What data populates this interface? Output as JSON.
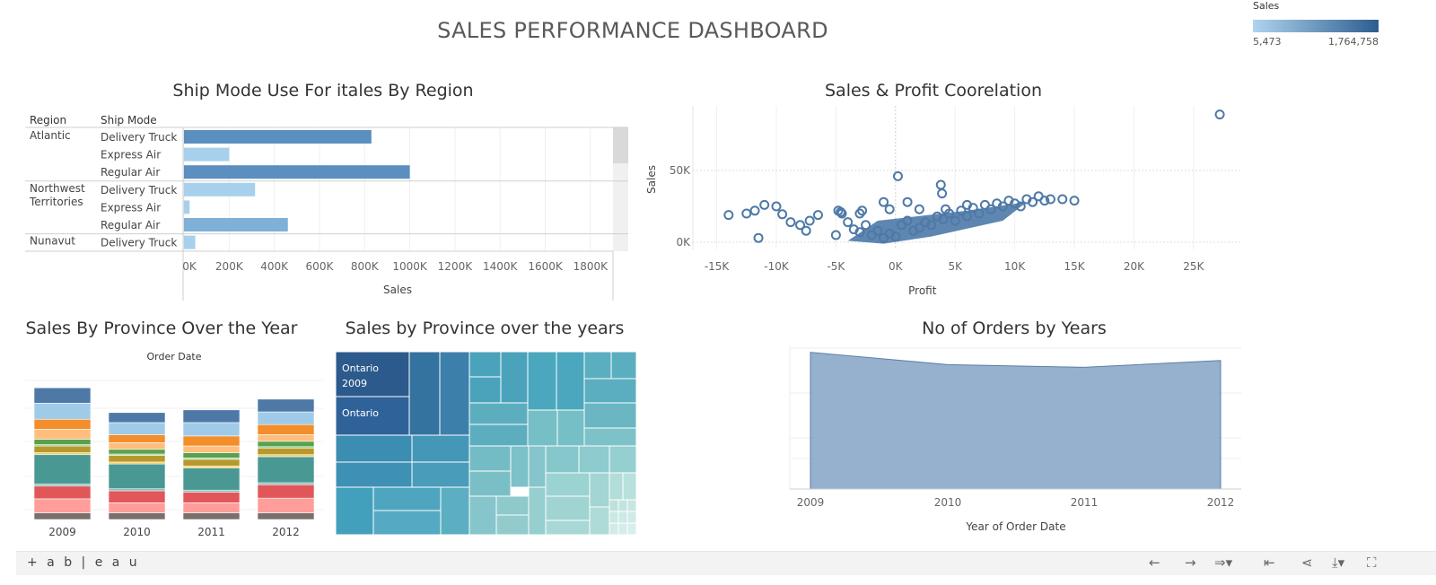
{
  "page": {
    "title": "SALES PERFORMANCE DASHBOARD"
  },
  "legend": {
    "label": "Sales",
    "min": "5,473",
    "max": "1,764,758"
  },
  "ship_mode_panel": {
    "title": "Ship Mode Use For itales By Region",
    "col_region": "Region",
    "col_ship_mode": "Ship Mode",
    "xlabel": "Sales",
    "chart_data": {
      "type": "bar",
      "title": "Ship Mode Use For itales By Region",
      "xlabel": "Sales",
      "xlim": [
        0,
        1900000
      ],
      "x_ticks": [
        "0K",
        "200K",
        "400K",
        "600K",
        "800K",
        "1000K",
        "1200K",
        "1400K",
        "1600K",
        "1800K"
      ],
      "rows": [
        {
          "region": "Atlantic",
          "ship_mode": "Delivery Truck",
          "value": 830000
        },
        {
          "region": "",
          "ship_mode": "Express Air",
          "value": 200000
        },
        {
          "region": "",
          "ship_mode": "Regular Air",
          "value": 1000000
        },
        {
          "region": "Northwest Territories",
          "ship_mode": "Delivery Truck",
          "value": 315000
        },
        {
          "region": "",
          "ship_mode": "Express Air",
          "value": 25000
        },
        {
          "region": "",
          "ship_mode": "Regular Air",
          "value": 460000
        },
        {
          "region": "Nunavut",
          "ship_mode": "Delivery Truck",
          "value": 50000
        }
      ]
    }
  },
  "scatter_panel": {
    "title": "Sales & Profit Coorelation",
    "chart_data": {
      "type": "scatter",
      "title": "Sales & Profit Coorelation",
      "xlabel": "Profit",
      "ylabel": "Sales",
      "xlim": [
        -17000,
        29000
      ],
      "ylim": [
        -5000,
        95000
      ],
      "x_ticks": [
        "-15K",
        "-10K",
        "-5K",
        "0K",
        "5K",
        "10K",
        "15K",
        "20K",
        "25K"
      ],
      "y_ticks": [
        "0K",
        "50K"
      ],
      "points": [
        [
          27200,
          89000
        ],
        [
          -14000,
          19000
        ],
        [
          -12500,
          20000
        ],
        [
          -11800,
          22000
        ],
        [
          -11000,
          26000
        ],
        [
          -10000,
          25000
        ],
        [
          -9500,
          19500
        ],
        [
          -8800,
          14000
        ],
        [
          -8000,
          12000
        ],
        [
          -7200,
          15000
        ],
        [
          -6500,
          19000
        ],
        [
          -7500,
          8000
        ],
        [
          -11500,
          3000
        ],
        [
          -5000,
          5000
        ],
        [
          -4500,
          20000
        ],
        [
          -4000,
          14000
        ],
        [
          -3500,
          9000
        ],
        [
          -3000,
          7000
        ],
        [
          -2500,
          12000
        ],
        [
          -2000,
          5000
        ],
        [
          -1500,
          8000
        ],
        [
          -1000,
          3000
        ],
        [
          -500,
          6000
        ],
        [
          0,
          4000
        ],
        [
          200,
          46000
        ],
        [
          500,
          12000
        ],
        [
          1000,
          15000
        ],
        [
          1500,
          8000
        ],
        [
          2000,
          10000
        ],
        [
          2500,
          14000
        ],
        [
          3000,
          12000
        ],
        [
          3500,
          18000
        ],
        [
          4000,
          16000
        ],
        [
          4500,
          20000
        ],
        [
          5000,
          15000
        ],
        [
          5500,
          22000
        ],
        [
          6000,
          18000
        ],
        [
          6500,
          24000
        ],
        [
          7000,
          20000
        ],
        [
          7500,
          26000
        ],
        [
          8000,
          23000
        ],
        [
          8500,
          27000
        ],
        [
          9000,
          25000
        ],
        [
          9500,
          29000
        ],
        [
          10000,
          27000
        ],
        [
          10500,
          25000
        ],
        [
          11000,
          30000
        ],
        [
          11500,
          28000
        ],
        [
          12000,
          32000
        ],
        [
          12500,
          29000
        ],
        [
          13000,
          30000
        ],
        [
          14000,
          30000
        ],
        [
          15000,
          29000
        ],
        [
          3800,
          40000
        ],
        [
          3900,
          34000
        ],
        [
          -3000,
          20000
        ],
        [
          -2800,
          22000
        ],
        [
          -1000,
          28000
        ],
        [
          -500,
          23000
        ],
        [
          1000,
          28000
        ],
        [
          2000,
          23000
        ],
        [
          4200,
          23000
        ],
        [
          6000,
          26000
        ],
        [
          -4600,
          21000
        ],
        [
          -4800,
          22000
        ]
      ]
    }
  },
  "stacked_panel": {
    "title": "Sales By Province Over the Year",
    "header": "Order Date",
    "chart_data": {
      "type": "bar",
      "title": "Sales By Province Over the Year",
      "xlabel": "Order Date",
      "categories": [
        "2009",
        "2010",
        "2011",
        "2012"
      ],
      "colors": [
        "#4e79a7",
        "#a0cbe8",
        "#f28e2b",
        "#ffbe7d",
        "#59a14f",
        "#8cd17d",
        "#b6992d",
        "#f1ce63",
        "#499894",
        "#86bcb6",
        "#e15759",
        "#ff9d9a",
        "#79706e"
      ],
      "series": [
        {
          "values": [
            230,
            150,
            190,
            190
          ]
        },
        {
          "values": [
            240,
            180,
            200,
            190
          ]
        },
        {
          "values": [
            150,
            120,
            150,
            150
          ]
        },
        {
          "values": [
            150,
            100,
            100,
            100
          ]
        },
        {
          "values": [
            80,
            70,
            80,
            80
          ]
        },
        {
          "values": [
            20,
            20,
            20,
            20
          ]
        },
        {
          "values": [
            100,
            100,
            100,
            100
          ]
        },
        {
          "values": [
            30,
            30,
            30,
            30
          ]
        },
        {
          "values": [
            440,
            370,
            330,
            390
          ]
        },
        {
          "values": [
            30,
            30,
            30,
            30
          ]
        },
        {
          "values": [
            190,
            180,
            160,
            200
          ]
        },
        {
          "values": [
            210,
            150,
            150,
            220
          ]
        },
        {
          "values": [
            100,
            100,
            100,
            100
          ]
        }
      ]
    }
  },
  "treemap_panel": {
    "title": "Sales by Province over the years",
    "label_1": "Ontario",
    "label_1b": "2009",
    "label_2": "Ontario",
    "chart_data": {
      "type": "heatmap",
      "title": "Sales by Province over the years",
      "cells": [
        {
          "label": "Ontario 2009",
          "color": "#2d5d8f"
        },
        {
          "label": "Ontario",
          "color": "#34699a"
        }
      ]
    }
  },
  "area_panel": {
    "title": "No of Orders by Years",
    "chart_data": {
      "type": "area",
      "title": "No of Orders by Years",
      "xlabel": "Year of Order Date",
      "ylabel": "",
      "categories": [
        "2009",
        "2010",
        "2011",
        "2012"
      ],
      "values": [
        2000,
        1820,
        1780,
        1880
      ],
      "ylim": [
        0,
        2100
      ],
      "color": "#7b9ec0"
    }
  },
  "toolbar": {
    "logo": "+ a b | e a u"
  }
}
